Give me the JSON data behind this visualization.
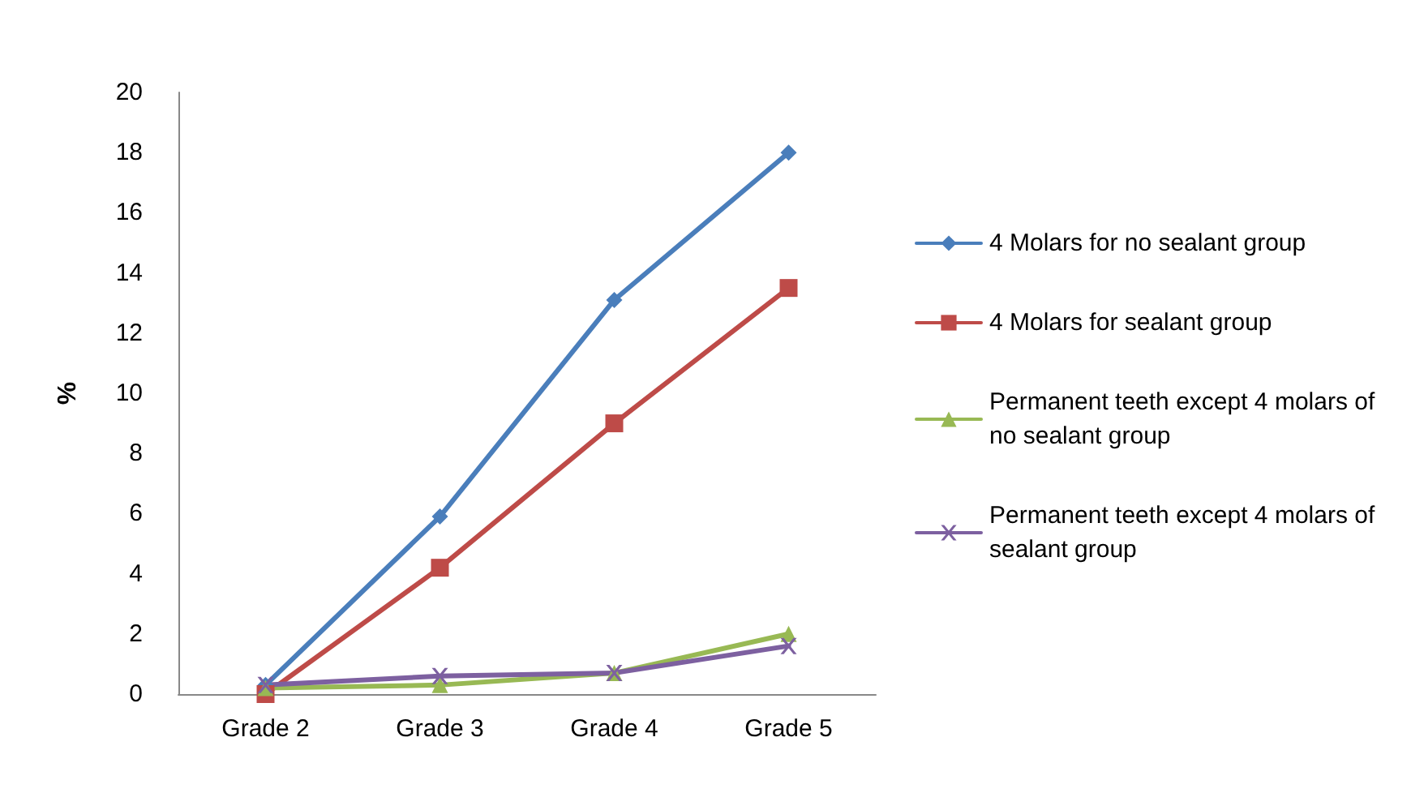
{
  "chart_data": {
    "type": "line",
    "ylabel": "%",
    "categories": [
      "Grade 2",
      "Grade 3",
      "Grade 4",
      "Grade 5"
    ],
    "series": [
      {
        "name": "4 Molars for no sealant group",
        "color": "#4a7ebb",
        "marker": "diamond",
        "values": [
          0.3,
          5.9,
          13.1,
          18.0
        ]
      },
      {
        "name": "4 Molars for sealant group",
        "color": "#be4b48",
        "marker": "square",
        "values": [
          0.0,
          4.2,
          9.0,
          13.5
        ]
      },
      {
        "name": "Permanent teeth except 4 molars of no sealant group",
        "color": "#98b954",
        "marker": "triangle",
        "values": [
          0.2,
          0.3,
          0.7,
          2.0
        ]
      },
      {
        "name": "Permanent teeth except 4 molars of sealant group",
        "color": "#7d60a0",
        "marker": "cross",
        "values": [
          0.3,
          0.6,
          0.7,
          1.6
        ]
      }
    ],
    "ylim": [
      0,
      20
    ],
    "yticks": [
      0,
      2,
      4,
      6,
      8,
      10,
      12,
      14,
      16,
      18,
      20
    ],
    "grid": false,
    "legend": "right"
  }
}
